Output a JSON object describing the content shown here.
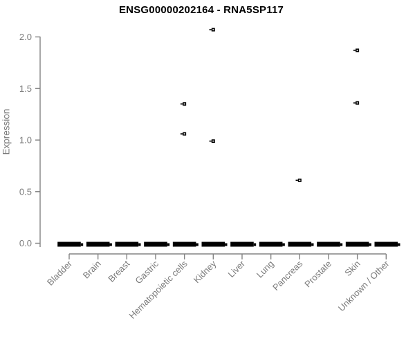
{
  "chart_data": {
    "type": "box",
    "title": "ENSG00000202164 - RNA5SP117",
    "ylabel": "Expression",
    "xlabel": "",
    "ylim": [
      0.0,
      2.0
    ],
    "ytick_labels": [
      "0.0",
      "0.5",
      "1.0",
      "1.5",
      "2.0"
    ],
    "ytick_values": [
      0.0,
      0.5,
      1.0,
      1.5,
      2.0
    ],
    "grid": false,
    "legend_position": "none",
    "categories": [
      "Bladder",
      "Brain",
      "Breast",
      "Gastric",
      "Hematopoietic cells",
      "Kidney",
      "Liver",
      "Lung",
      "Pancreas",
      "Prostate",
      "Skin",
      "Unknown / Other"
    ],
    "boxes": [
      {
        "category": "Bladder",
        "median": 0,
        "q1": 0,
        "q3": 0,
        "whisker_low": 0,
        "whisker_high": 0,
        "outliers": []
      },
      {
        "category": "Brain",
        "median": 0,
        "q1": 0,
        "q3": 0,
        "whisker_low": 0,
        "whisker_high": 0,
        "outliers": []
      },
      {
        "category": "Breast",
        "median": 0,
        "q1": 0,
        "q3": 0,
        "whisker_low": 0,
        "whisker_high": 0,
        "outliers": []
      },
      {
        "category": "Gastric",
        "median": 0,
        "q1": 0,
        "q3": 0,
        "whisker_low": 0,
        "whisker_high": 0,
        "outliers": []
      },
      {
        "category": "Hematopoietic cells",
        "median": 0,
        "q1": 0,
        "q3": 0,
        "whisker_low": 0,
        "whisker_high": 0,
        "outliers": [
          1.35,
          1.06
        ]
      },
      {
        "category": "Kidney",
        "median": 0,
        "q1": 0,
        "q3": 0,
        "whisker_low": 0,
        "whisker_high": 0,
        "outliers": [
          2.07,
          0.99
        ]
      },
      {
        "category": "Liver",
        "median": 0,
        "q1": 0,
        "q3": 0,
        "whisker_low": 0,
        "whisker_high": 0,
        "outliers": []
      },
      {
        "category": "Lung",
        "median": 0,
        "q1": 0,
        "q3": 0,
        "whisker_low": 0,
        "whisker_high": 0,
        "outliers": []
      },
      {
        "category": "Pancreas",
        "median": 0,
        "q1": 0,
        "q3": 0,
        "whisker_low": 0,
        "whisker_high": 0,
        "outliers": [
          0.61
        ]
      },
      {
        "category": "Prostate",
        "median": 0,
        "q1": 0,
        "q3": 0,
        "whisker_low": 0,
        "whisker_high": 0,
        "outliers": []
      },
      {
        "category": "Skin",
        "median": 0,
        "q1": 0,
        "q3": 0,
        "whisker_low": 0,
        "whisker_high": 0,
        "outliers": [
          1.87,
          1.36
        ]
      },
      {
        "category": "Unknown / Other",
        "median": 0,
        "q1": 0,
        "q3": 0,
        "whisker_low": 0,
        "whisker_high": 0,
        "outliers": []
      }
    ]
  },
  "colors": {
    "axis": "#828282",
    "text": "#7b7b7b",
    "data": "#000000",
    "title": "#000000",
    "background": "#ffffff"
  }
}
